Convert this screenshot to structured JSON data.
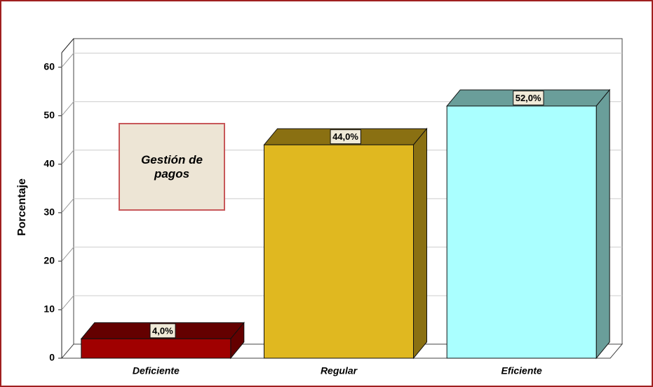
{
  "chart_data": {
    "type": "bar3d",
    "legend_title": "Gestión de pagos",
    "y_label": "Porcentaje",
    "categories": [
      "Deficiente",
      "Regular",
      "Eficiente"
    ],
    "values": [
      4.0,
      44.0,
      52.0
    ],
    "value_labels": [
      "4,0%",
      "44,0%",
      "52,0%"
    ],
    "colors": [
      "#a00000",
      "#e0b820",
      "#aaffff"
    ],
    "shade_colors": [
      "#640000",
      "#8a7012",
      "#6a9e9a"
    ],
    "ylim": [
      0,
      63
    ],
    "yticks": [
      0,
      10,
      20,
      30,
      40,
      50,
      60
    ],
    "grid": true
  }
}
